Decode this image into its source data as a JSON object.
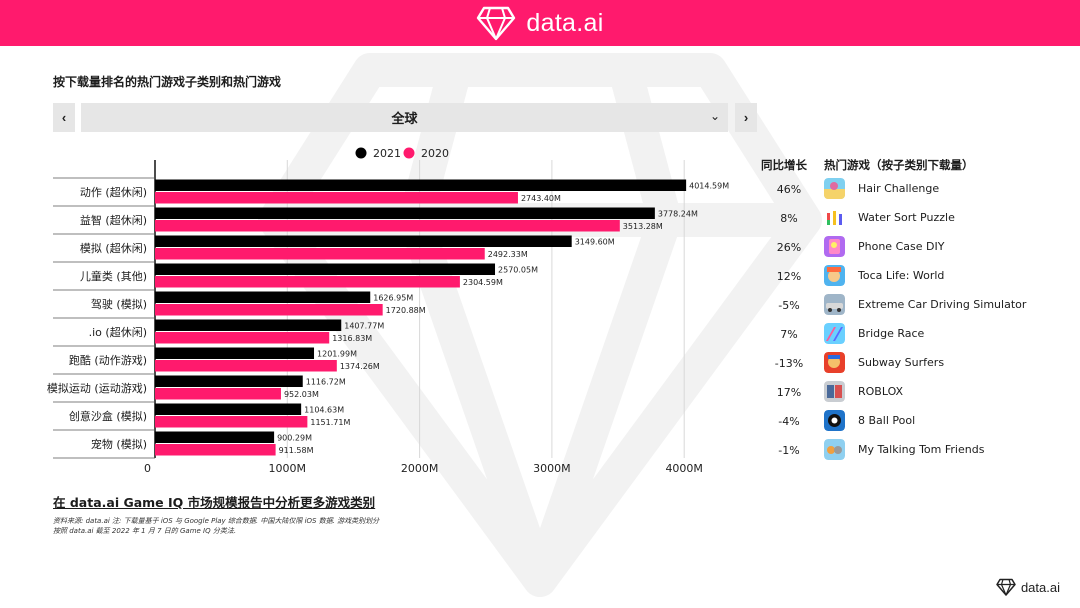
{
  "header": {
    "brand": "data.ai"
  },
  "page_title": "按下载量排名的热门游戏子类别和热门游戏",
  "nav": {
    "prev_icon": "‹",
    "next_icon": "›"
  },
  "region": {
    "selected": "全球",
    "chevron": "⌄"
  },
  "legend": {
    "series_2021": "2021",
    "series_2020": "2020"
  },
  "table": {
    "growth_header": "同比增长",
    "games_header": "热门游戏（按子类别下载量）"
  },
  "rows": [
    {
      "growth": "46%",
      "game": "Hair Challenge"
    },
    {
      "growth": "8%",
      "game": "Water Sort Puzzle"
    },
    {
      "growth": "26%",
      "game": "Phone Case DIY"
    },
    {
      "growth": "12%",
      "game": "Toca Life: World"
    },
    {
      "growth": "-5%",
      "game": "Extreme Car Driving Simulator"
    },
    {
      "growth": "7%",
      "game": "Bridge Race"
    },
    {
      "growth": "-13%",
      "game": "Subway Surfers"
    },
    {
      "growth": "17%",
      "game": "ROBLOX"
    },
    {
      "growth": "-4%",
      "game": "8 Ball Pool"
    },
    {
      "growth": "-1%",
      "game": "My Talking Tom Friends"
    }
  ],
  "footer": {
    "link": "在 data.ai Game IQ 市场规模报告中分析更多游戏类别",
    "source_line1": "资料来源: data.ai 注: 下载量基于 iOS 与 Google Play 综合数据. 中国大陆仅限 iOS 数据. 游戏类别划分",
    "source_line2": "按照 data.ai 截至 2022 年 1 月 7 日的 Game IQ 分类法.",
    "brand": "data.ai"
  },
  "colors": {
    "accent": "#ff1a6d",
    "series_2021": "#000000",
    "series_2020": "#ff1a6d"
  },
  "chart_data": {
    "type": "bar",
    "orientation": "horizontal",
    "categories": [
      "动作 (超休闲)",
      "益智 (超休闲)",
      "模拟 (超休闲)",
      "儿童类 (其他)",
      "驾驶 (模拟)",
      ".io (超休闲)",
      "跑酷 (动作游戏)",
      "模拟运动 (运动游戏)",
      "创意沙盒 (模拟)",
      "宠物 (模拟)"
    ],
    "series": [
      {
        "name": "2021",
        "values": [
          4014.59,
          3778.24,
          3149.6,
          2570.05,
          1626.95,
          1407.77,
          1201.99,
          1116.72,
          1104.63,
          900.29
        ],
        "labels": [
          "4014.59M",
          "3778.24M",
          "3149.60M",
          "2570.05M",
          "1626.95M",
          "1407.77M",
          "1201.99M",
          "1116.72M",
          "1104.63M",
          "900.29M"
        ]
      },
      {
        "name": "2020",
        "values": [
          2743.4,
          3513.28,
          2492.33,
          2304.59,
          1720.88,
          1316.83,
          1374.26,
          952.03,
          1151.71,
          911.58
        ],
        "labels": [
          "2743.40M",
          "3513.28M",
          "2492.33M",
          "2304.59M",
          "1720.88M",
          "1316.83M",
          "1374.26M",
          "952.03M",
          "1151.71M",
          "911.58M"
        ]
      }
    ],
    "xticks": [
      0,
      1000,
      2000,
      3000,
      4000
    ],
    "xtick_labels": [
      "0",
      "1000M",
      "2000M",
      "3000M",
      "4000M"
    ],
    "xlim": [
      0,
      4000
    ],
    "grid": "vertical",
    "legend_position": "top-center"
  }
}
